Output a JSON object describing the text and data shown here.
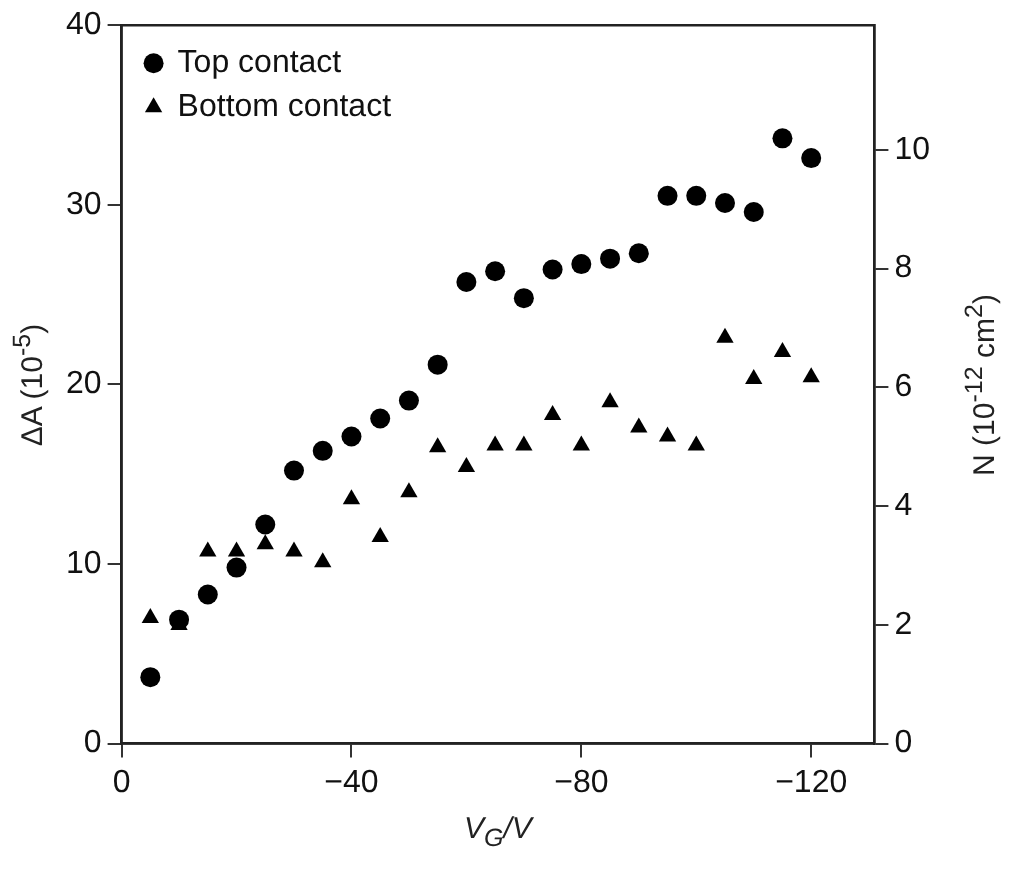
{
  "chart_data": {
    "type": "scatter",
    "xlabel": "V$_{G}$/V",
    "ylabel": "ΔA (10$^{-5}$)",
    "y2label": "N (10$^{-12}$ cm$^{2}$)",
    "xlim": [
      0,
      -131
    ],
    "xticks": [
      0,
      -40,
      -80,
      -120
    ],
    "ylim": [
      0,
      40
    ],
    "yticks": [
      0,
      10,
      20,
      30,
      40
    ],
    "y2lim": [
      0,
      12.1
    ],
    "y2ticks": [
      0,
      2,
      4,
      6,
      8,
      10
    ],
    "grid": false,
    "legend": "top left",
    "x": [
      -5,
      -10,
      -15,
      -20,
      -25,
      -30,
      -35,
      -40,
      -45,
      -50,
      -55,
      -60,
      -65,
      -70,
      -75,
      -80,
      -85,
      -90,
      -95,
      -100,
      -105,
      -110,
      -115,
      -120
    ],
    "series": [
      {
        "name": "Top contact",
        "color": "#000000",
        "marker": "circle",
        "values": [
          3.7,
          6.9,
          8.3,
          9.8,
          12.2,
          15.2,
          16.3,
          17.1,
          18.1,
          19.1,
          21.1,
          25.7,
          26.3,
          24.8,
          26.4,
          26.7,
          27.0,
          27.3,
          30.5,
          30.5,
          30.1,
          29.6,
          33.7,
          32.6
        ]
      },
      {
        "name": "Bottom contact",
        "color": "#000000",
        "marker": "triangle",
        "values": [
          7.0,
          6.6,
          10.7,
          10.7,
          11.1,
          10.7,
          10.1,
          13.6,
          11.5,
          14.0,
          16.5,
          15.4,
          16.6,
          16.6,
          18.3,
          16.6,
          19.0,
          17.6,
          17.1,
          16.6,
          22.6,
          20.3,
          21.8,
          20.4
        ]
      }
    ]
  }
}
